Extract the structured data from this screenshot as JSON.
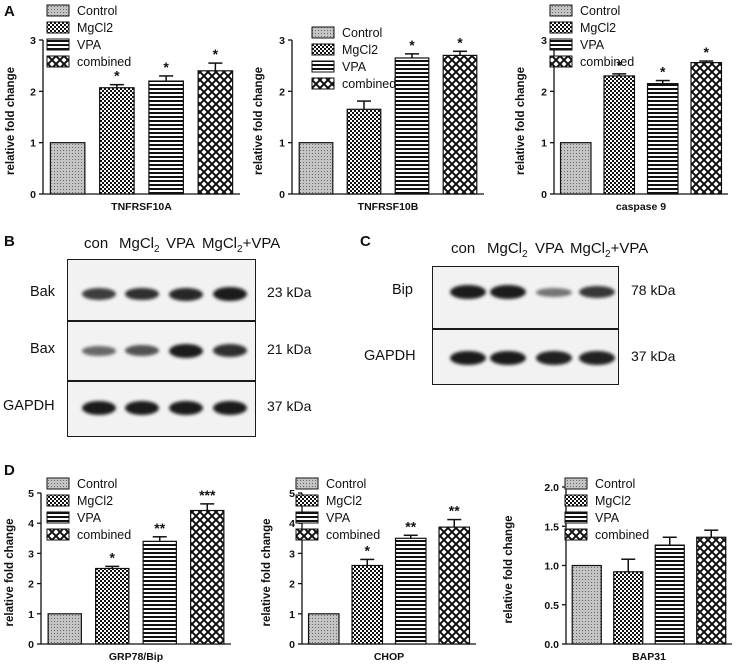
{
  "panels": {
    "A": "A",
    "B": "B",
    "C": "C",
    "D": "D"
  },
  "colors": {
    "ink": "#111111",
    "control_fill": "#b9b9b9",
    "blot_background": "#f2f2f2",
    "band": "#1b1b1b"
  },
  "chart_data": [
    {
      "id": "tnfrsf10a",
      "type": "bar",
      "title": "",
      "xlabel": "TNFRSF10A",
      "ylabel": "relative fold change",
      "ylim": [
        0,
        3
      ],
      "yticks": [
        0,
        1,
        2,
        3
      ],
      "categories": [
        "Control",
        "MgCl2",
        "VPA",
        "combined"
      ],
      "values": [
        1.0,
        2.07,
        2.2,
        2.4
      ],
      "errors": [
        0,
        0.06,
        0.1,
        0.15
      ],
      "significance": [
        "",
        "*",
        "*",
        "*"
      ],
      "legend": [
        "Control",
        "MgCl2",
        "VPA",
        "combined"
      ],
      "legend_position": "top-left",
      "grid": false
    },
    {
      "id": "tnfrsf10b",
      "type": "bar",
      "title": "",
      "xlabel": "TNFRSF10B",
      "ylabel": "relative fold change",
      "ylim": [
        0,
        3
      ],
      "yticks": [
        0,
        1,
        2,
        3
      ],
      "categories": [
        "Control",
        "MgCl2",
        "VPA",
        "combined"
      ],
      "values": [
        1.0,
        1.65,
        2.65,
        2.7
      ],
      "errors": [
        0,
        0.16,
        0.08,
        0.08
      ],
      "significance": [
        "",
        "",
        "*",
        "*"
      ],
      "legend": [
        "Control",
        "MgCl2",
        "VPA",
        "combined"
      ],
      "legend_position": "top-left",
      "grid": false
    },
    {
      "id": "caspase9",
      "type": "bar",
      "title": "",
      "xlabel": "caspase 9",
      "ylabel": "relative fold change",
      "ylim": [
        0,
        3
      ],
      "yticks": [
        0,
        1,
        2,
        3
      ],
      "categories": [
        "Control",
        "MgCl2",
        "VPA",
        "combined"
      ],
      "values": [
        1.0,
        2.3,
        2.15,
        2.56
      ],
      "errors": [
        0,
        0.04,
        0.06,
        0.03
      ],
      "significance": [
        "",
        "*",
        "*",
        "*"
      ],
      "legend": [
        "Control",
        "MgCl2",
        "VPA",
        "combined"
      ],
      "legend_position": "top-left",
      "grid": false
    },
    {
      "id": "grp78",
      "type": "bar",
      "title": "",
      "xlabel": "GRP78/Bip",
      "ylabel": "relative fold change",
      "ylim": [
        0,
        5
      ],
      "yticks": [
        0,
        1,
        2,
        3,
        4,
        5
      ],
      "categories": [
        "Control",
        "MgCl2",
        "VPA",
        "combined"
      ],
      "values": [
        1.0,
        2.5,
        3.4,
        4.42
      ],
      "errors": [
        0,
        0.07,
        0.15,
        0.22
      ],
      "significance": [
        "",
        "*",
        "**",
        "***"
      ],
      "legend": [
        "Control",
        "MgCl2",
        "VPA",
        "combined"
      ],
      "legend_position": "top-left",
      "grid": false
    },
    {
      "id": "chop",
      "type": "bar",
      "title": "",
      "xlabel": "CHOP",
      "ylabel": "relative fold change",
      "ylim": [
        0,
        5
      ],
      "yticks": [
        0,
        1,
        2,
        3,
        4,
        5
      ],
      "categories": [
        "Control",
        "MgCl2",
        "VPA",
        "combined"
      ],
      "values": [
        1.0,
        2.6,
        3.5,
        3.87
      ],
      "errors": [
        0,
        0.2,
        0.1,
        0.25
      ],
      "significance": [
        "",
        "*",
        "**",
        "**"
      ],
      "legend": [
        "Control",
        "MgCl2",
        "VPA",
        "combined"
      ],
      "legend_position": "top-left",
      "grid": false
    },
    {
      "id": "bap31",
      "type": "bar",
      "title": "",
      "xlabel": "BAP31",
      "ylabel": "relative fold change",
      "ylim": [
        0,
        2.0
      ],
      "yticks": [
        "0.0",
        "0.5",
        "1.0",
        "1.5",
        "2.0"
      ],
      "categories": [
        "Control",
        "MgCl2",
        "VPA",
        "combined"
      ],
      "values": [
        1.0,
        0.92,
        1.26,
        1.36
      ],
      "errors": [
        0,
        0.16,
        0.1,
        0.09
      ],
      "significance": [
        "",
        "",
        "",
        ""
      ],
      "legend": [
        "Control",
        "MgCl2",
        "VPA",
        "combined"
      ],
      "legend_position": "top-right",
      "grid": false
    }
  ],
  "blot_b": {
    "lanes": [
      "con",
      "MgCl2",
      "VPA",
      "MgCl2+VPA"
    ],
    "rows": [
      {
        "label": "Bak",
        "kda": "23 kDa",
        "band_intensity": [
          0.75,
          0.85,
          0.9,
          1.0
        ]
      },
      {
        "label": "Bax",
        "kda": "21 kDa",
        "band_intensity": [
          0.45,
          0.6,
          1.0,
          0.85
        ]
      },
      {
        "label": "GAPDH",
        "kda": "37 kDa",
        "band_intensity": [
          1.0,
          1.0,
          1.0,
          1.0
        ]
      }
    ]
  },
  "blot_c": {
    "lanes": [
      "con",
      "MgCl2",
      "VPA",
      "MgCl2+VPA"
    ],
    "rows": [
      {
        "label": "Bip",
        "kda": "78 kDa",
        "band_intensity": [
          1.0,
          1.0,
          0.35,
          0.8
        ]
      },
      {
        "label": "GAPDH",
        "kda": "37 kDa",
        "band_intensity": [
          1.0,
          1.0,
          0.95,
          0.95
        ]
      }
    ]
  }
}
